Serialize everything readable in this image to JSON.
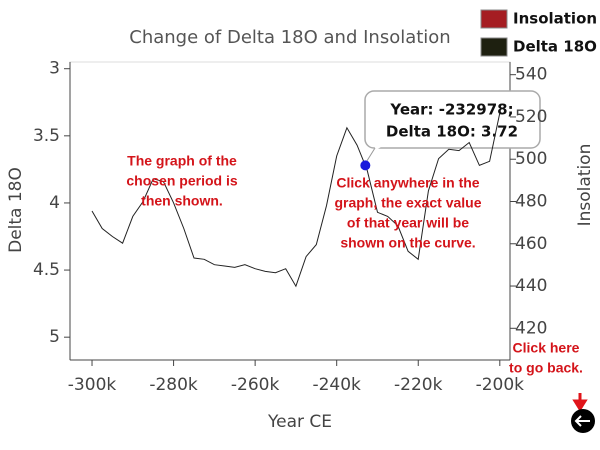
{
  "chart_data": {
    "type": "line",
    "title": "Change of Delta 18O and Insolation",
    "x_label": "Year CE",
    "y_label": "Delta 18O",
    "y2_label": "Insolation",
    "xlim": [
      -305400,
      -197500
    ],
    "xticks": [
      {
        "value": -300000,
        "label": "-300k"
      },
      {
        "value": -280000,
        "label": "-280k"
      },
      {
        "value": -260000,
        "label": "-260k"
      },
      {
        "value": -240000,
        "label": "-240k"
      },
      {
        "value": -220000,
        "label": "-220k"
      },
      {
        "value": -200000,
        "label": "-200k"
      }
    ],
    "ylim": [
      2.95,
      5.17
    ],
    "y_inverted": true,
    "yticks": [
      3,
      3.5,
      4,
      4.5,
      5
    ],
    "y2lim": [
      405,
      546
    ],
    "y2ticks": [
      420,
      440,
      460,
      480,
      500,
      520,
      540
    ],
    "legend": [
      {
        "name": "Insolation",
        "color": "#a51d22"
      },
      {
        "name": "Delta 18O",
        "color": "#1e2010"
      }
    ],
    "series": [
      {
        "name": "Delta 18O",
        "color": "#222222",
        "x": [
          -300000,
          -297500,
          -295000,
          -292500,
          -290000,
          -287500,
          -285000,
          -282500,
          -280000,
          -277500,
          -275000,
          -272500,
          -270000,
          -267500,
          -265000,
          -262500,
          -260000,
          -257500,
          -255000,
          -252500,
          -250000,
          -247500,
          -245000,
          -242500,
          -240000,
          -237500,
          -235000,
          -232978,
          -232500,
          -230000,
          -227500,
          -225000,
          -222500,
          -220000,
          -217500,
          -215000,
          -212500,
          -210000,
          -207500,
          -205000,
          -202500,
          -200000
        ],
        "values": [
          4.06,
          4.19,
          4.25,
          4.3,
          4.1,
          3.99,
          3.82,
          3.84,
          4.0,
          4.19,
          4.41,
          4.42,
          4.46,
          4.47,
          4.48,
          4.46,
          4.49,
          4.51,
          4.52,
          4.49,
          4.62,
          4.4,
          4.31,
          4.02,
          3.65,
          3.44,
          3.57,
          3.72,
          3.76,
          4.07,
          4.1,
          4.17,
          4.36,
          4.42,
          3.91,
          3.67,
          3.6,
          3.61,
          3.55,
          3.72,
          3.69,
          3.33
        ]
      }
    ],
    "selected_point": {
      "x": -232978,
      "y": 3.72,
      "color": "#1a1adc"
    },
    "tooltip": [
      "Year: -232978;",
      "Delta 18O: 3.72"
    ],
    "annotations": [
      {
        "lines": [
          "The graph of the",
          "chosen period is",
          "then shown."
        ]
      },
      {
        "lines": [
          "Click anywhere in the",
          "graph, the exact value",
          "of that year will be",
          "shown on the curve."
        ]
      },
      {
        "lines": [
          "Click here",
          "to go back."
        ]
      }
    ]
  }
}
